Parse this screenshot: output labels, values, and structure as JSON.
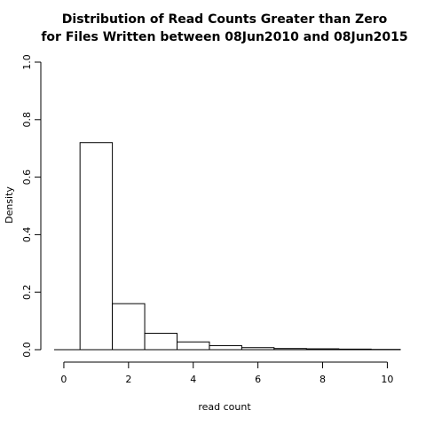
{
  "chart_data": {
    "type": "bar",
    "title_lines": [
      "Distribution of Read Counts Greater than Zero",
      "for Files Written between 08Jun2010 and 08Jun2015"
    ],
    "xlabel": "read count",
    "ylabel": "Density",
    "xlim": [
      -0.3,
      10.4
    ],
    "ylim": [
      0,
      1.0
    ],
    "x_ticks": [
      0,
      2,
      4,
      6,
      8,
      10
    ],
    "y_ticks": [
      0.0,
      0.2,
      0.4,
      0.6,
      0.8,
      1.0
    ],
    "x_tick_labels": [
      "0",
      "2",
      "4",
      "6",
      "8",
      "10"
    ],
    "y_tick_labels": [
      "0.0",
      "0.2",
      "0.4",
      "0.6",
      "0.8",
      "1.0"
    ],
    "bars": [
      {
        "x0": -0.5,
        "x1": 0.5,
        "value": 0.0
      },
      {
        "x0": 0.5,
        "x1": 1.5,
        "value": 0.72
      },
      {
        "x0": 1.5,
        "x1": 2.5,
        "value": 0.16
      },
      {
        "x0": 2.5,
        "x1": 3.5,
        "value": 0.057
      },
      {
        "x0": 3.5,
        "x1": 4.5,
        "value": 0.027
      },
      {
        "x0": 4.5,
        "x1": 5.5,
        "value": 0.014
      },
      {
        "x0": 5.5,
        "x1": 6.5,
        "value": 0.007
      },
      {
        "x0": 6.5,
        "x1": 7.5,
        "value": 0.004
      },
      {
        "x0": 7.5,
        "x1": 8.5,
        "value": 0.003
      },
      {
        "x0": 8.5,
        "x1": 9.5,
        "value": 0.002
      },
      {
        "x0": 9.5,
        "x1": 10.4,
        "value": 0.001
      }
    ],
    "grid": false,
    "bar_fill": "#ffffff",
    "bar_stroke": "#000000"
  }
}
